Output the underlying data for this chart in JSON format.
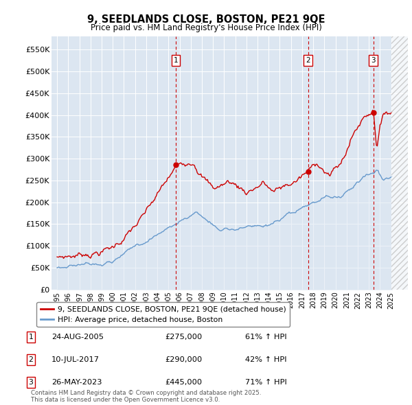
{
  "title": "9, SEEDLANDS CLOSE, BOSTON, PE21 9QE",
  "subtitle": "Price paid vs. HM Land Registry's House Price Index (HPI)",
  "red_label": "9, SEEDLANDS CLOSE, BOSTON, PE21 9QE (detached house)",
  "blue_label": "HPI: Average price, detached house, Boston",
  "transactions": [
    {
      "num": 1,
      "date": "24-AUG-2005",
      "price": 275000,
      "pct": "61%",
      "x": 2005.65
    },
    {
      "num": 2,
      "date": "10-JUL-2017",
      "price": 290000,
      "pct": "42%",
      "x": 2017.53
    },
    {
      "num": 3,
      "date": "26-MAY-2023",
      "price": 445000,
      "pct": "71%",
      "x": 2023.4
    }
  ],
  "red_color": "#cc0000",
  "blue_color": "#6699cc",
  "blue_fill_color": "#dce6f1",
  "background_color": "#dce6f1",
  "ylim": [
    0,
    580000
  ],
  "yticks": [
    0,
    50000,
    100000,
    150000,
    200000,
    250000,
    300000,
    350000,
    400000,
    450000,
    500000,
    550000
  ],
  "xlim_start": 1994.5,
  "xlim_end": 2026.5,
  "hatch_start": 2025.0,
  "footer": "Contains HM Land Registry data © Crown copyright and database right 2025.\nThis data is licensed under the Open Government Licence v3.0.",
  "marker_box_color": "#cc0000"
}
